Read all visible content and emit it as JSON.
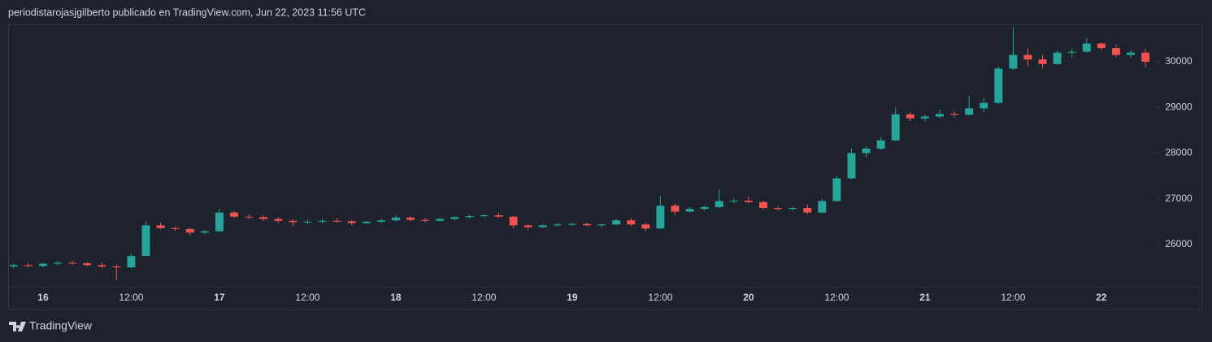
{
  "chart_data": {
    "type": "candlestick",
    "title": "periodistarojasjgilberto publicado en TradingView.com, Jun 22, 2023 11:56 UTC",
    "watermark": "TradingView",
    "up_color": "#26a69a",
    "down_color": "#ef5350",
    "xlim": [
      -4.75,
      151.2
    ],
    "ylim": [
      25076,
      30818
    ],
    "yticks": [
      26000,
      27000,
      28000,
      29000,
      30000
    ],
    "xticks": [
      {
        "value": 0,
        "label": "16"
      },
      {
        "value": 12,
        "label": "12:00"
      },
      {
        "value": 24,
        "label": "17"
      },
      {
        "value": 36,
        "label": "12:00"
      },
      {
        "value": 48,
        "label": "18"
      },
      {
        "value": 60,
        "label": "12:00"
      },
      {
        "value": 72,
        "label": "19"
      },
      {
        "value": 84,
        "label": "12:00"
      },
      {
        "value": 96,
        "label": "20"
      },
      {
        "value": 108,
        "label": "12:00"
      },
      {
        "value": 120,
        "label": "21"
      },
      {
        "value": 132,
        "label": "12:00"
      },
      {
        "value": 144,
        "label": "22"
      }
    ],
    "grid": false,
    "x": [
      -4,
      -2,
      0,
      2,
      4,
      6,
      8,
      10,
      12,
      14,
      16,
      18,
      20,
      22,
      24,
      26,
      28,
      30,
      32,
      34,
      36,
      38,
      40,
      42,
      44,
      46,
      48,
      50,
      52,
      54,
      56,
      58,
      60,
      62,
      64,
      66,
      68,
      70,
      72,
      74,
      76,
      78,
      80,
      82,
      84,
      86,
      88,
      90,
      92,
      94,
      96,
      98,
      100,
      102,
      104,
      106,
      108,
      110,
      112,
      114,
      116,
      118,
      120,
      122,
      124,
      126,
      128,
      130,
      132,
      134,
      136,
      138,
      140,
      142,
      144,
      146,
      148,
      150
    ],
    "open": [
      25520,
      25550,
      25530,
      25580,
      25600,
      25590,
      25550,
      25520,
      25500,
      25750,
      26420,
      26360,
      26340,
      26260,
      26290,
      26700,
      26610,
      26600,
      26560,
      26520,
      26490,
      26500,
      26520,
      26510,
      26470,
      26500,
      26530,
      26590,
      26540,
      26520,
      26560,
      26600,
      26620,
      26640,
      26610,
      26420,
      26380,
      26420,
      26440,
      26450,
      26420,
      26440,
      26530,
      26440,
      26350,
      26850,
      26720,
      26780,
      26820,
      26950,
      26960,
      26930,
      26800,
      26780,
      26800,
      26700,
      26950,
      27450,
      28000,
      28100,
      28280,
      28850,
      28760,
      28800,
      28860,
      28840,
      28980,
      29100,
      29850,
      30150,
      30050,
      29950,
      30200,
      30220,
      30400,
      30300,
      30150,
      30200
    ],
    "high": [
      25580,
      25600,
      25600,
      25640,
      25650,
      25620,
      25600,
      25560,
      25800,
      26500,
      26480,
      26400,
      26380,
      26320,
      26780,
      26740,
      26660,
      26640,
      26600,
      26560,
      26540,
      26560,
      26580,
      26540,
      26520,
      26560,
      26640,
      26620,
      26580,
      26580,
      26620,
      26650,
      26660,
      26700,
      26630,
      26460,
      26450,
      26470,
      26480,
      26480,
      26460,
      26560,
      26580,
      26470,
      27060,
      26900,
      26820,
      26850,
      27200,
      27020,
      27050,
      26960,
      26840,
      26820,
      26880,
      27000,
      27500,
      28100,
      28150,
      28350,
      29000,
      28900,
      28850,
      28950,
      28920,
      29250,
      29200,
      29900,
      30760,
      30300,
      30150,
      30250,
      30280,
      30520,
      30420,
      30380,
      30250,
      30280
    ],
    "low": [
      25480,
      25500,
      25500,
      25540,
      25560,
      25520,
      25480,
      25220,
      25480,
      25740,
      26330,
      26300,
      26200,
      26220,
      26280,
      26580,
      26560,
      26520,
      26470,
      26400,
      26450,
      26460,
      26480,
      26420,
      26440,
      26470,
      26500,
      26500,
      26490,
      26500,
      26530,
      26570,
      26590,
      26580,
      26360,
      26330,
      26360,
      26400,
      26410,
      26400,
      26380,
      26420,
      26400,
      26300,
      26340,
      26650,
      26700,
      26740,
      26800,
      26900,
      26900,
      26760,
      26740,
      26740,
      26660,
      26680,
      26940,
      27430,
      27900,
      28080,
      28260,
      28700,
      28700,
      28760,
      28780,
      28820,
      28900,
      29080,
      29820,
      29900,
      29850,
      29930,
      30100,
      30200,
      30250,
      30100,
      30080,
      29880
    ],
    "close": [
      25550,
      25530,
      25580,
      25600,
      25590,
      25550,
      25520,
      25500,
      25750,
      26420,
      26360,
      26340,
      26260,
      26290,
      26700,
      26610,
      26600,
      26560,
      26520,
      26490,
      26500,
      26520,
      26510,
      26470,
      26500,
      26530,
      26590,
      26540,
      26520,
      26560,
      26600,
      26620,
      26640,
      26610,
      26420,
      26380,
      26420,
      26440,
      26450,
      26420,
      26440,
      26530,
      26440,
      26350,
      26850,
      26720,
      26780,
      26820,
      26950,
      26960,
      26930,
      26800,
      26780,
      26800,
      26700,
      26950,
      27450,
      28000,
      28100,
      28280,
      28850,
      28760,
      28800,
      28860,
      28840,
      28980,
      29100,
      29850,
      30150,
      30050,
      29950,
      30200,
      30220,
      30400,
      30300,
      30150,
      30200,
      30000
    ]
  }
}
